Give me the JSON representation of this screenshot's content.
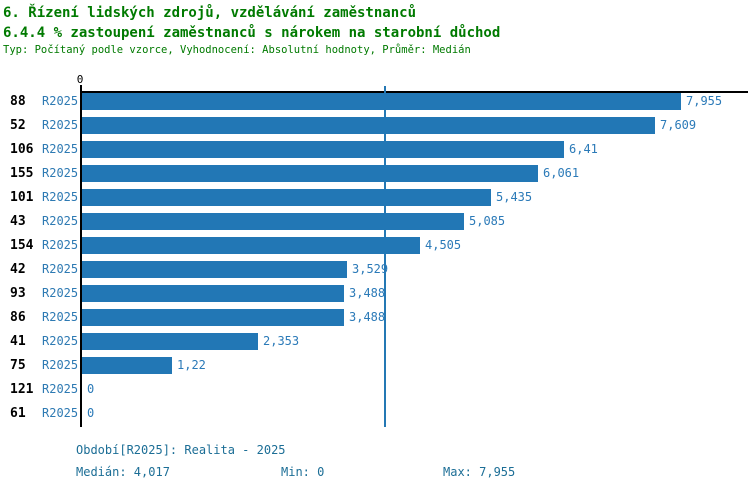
{
  "header": {
    "title_line1": "6. Řízení lidských zdrojů, vzdělávání zaměstnanců",
    "title_line2": "6.4.4 % zastoupení zaměstnanců s nárokem na starobní důchod",
    "subtitle": "Typ: Počítaný podle vzorce, Vyhodnocení: Absolutní hodnoty, Průměr: Medián"
  },
  "colors": {
    "title_green": "#007a00",
    "bar_blue": "#2277b5",
    "label_blue": "#2e7ab3",
    "footer_blue": "#1c6e96",
    "axis_black": "#000000"
  },
  "chart_data": {
    "type": "bar",
    "orientation": "horizontal",
    "origin_label": "0",
    "period_label": "R2025",
    "categories": [
      "88",
      "52",
      "106",
      "155",
      "101",
      "43",
      "154",
      "42",
      "93",
      "86",
      "41",
      "75",
      "121",
      "61"
    ],
    "values": [
      7.955,
      7.609,
      6.41,
      6.061,
      5.435,
      5.085,
      4.505,
      3.529,
      3.488,
      3.488,
      2.353,
      1.22,
      0,
      0
    ],
    "value_labels": [
      "7,955",
      "7,609",
      "6,41",
      "6,061",
      "5,435",
      "5,085",
      "4,505",
      "3,529",
      "3,488",
      "3,488",
      "2,353",
      "1,22",
      "0",
      "0"
    ],
    "median": 4.017,
    "min": 0,
    "max": 7.955,
    "xlim": [
      0,
      8.84
    ],
    "grid": false,
    "legend": false
  },
  "footer": {
    "period_line": "Období[R2025]: Realita - 2025",
    "median_label": "Medián: 4,017",
    "min_label": "Min: 0",
    "max_label": "Max: 7,955"
  }
}
